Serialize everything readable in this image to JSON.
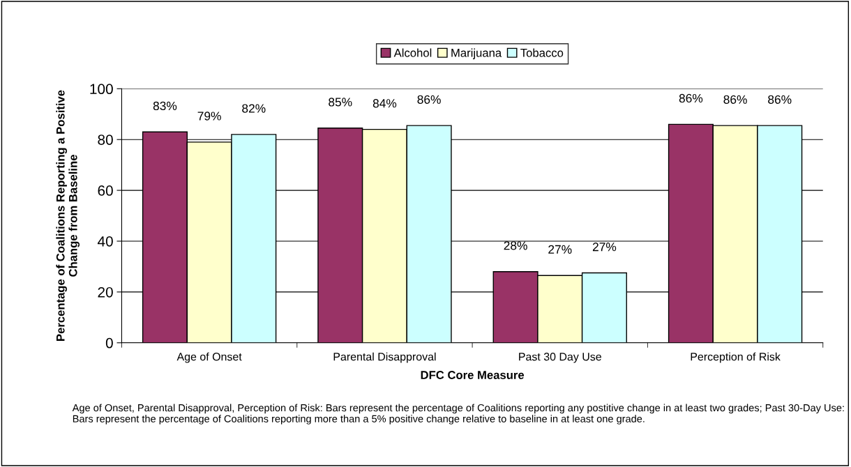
{
  "chart_data": {
    "type": "bar",
    "xlabel": "DFC Core Measure",
    "ylabel": "Percentage of Coalitions Reporting a Positive\nChange from Baseline",
    "categories": [
      "Age of Onset",
      "Parental Disapproval",
      "Past 30 Day Use",
      "Perception of Risk"
    ],
    "series": [
      {
        "name": "Alcohol",
        "color": "#993366",
        "values": [
          83,
          84.5,
          28,
          86
        ],
        "value_labels": [
          "83%",
          "85%",
          "28%",
          "86%"
        ]
      },
      {
        "name": "Marijuana",
        "color": "#ffffcc",
        "values": [
          79,
          84,
          26.5,
          85.5
        ],
        "value_labels": [
          "79%",
          "84%",
          "27%",
          "86%"
        ]
      },
      {
        "name": "Tobacco",
        "color": "#ccffff",
        "values": [
          82,
          85.5,
          27.5,
          85.5
        ],
        "value_labels": [
          "82%",
          "86%",
          "27%",
          "86%"
        ]
      }
    ],
    "ylim": [
      0,
      100
    ],
    "yticks": [
      0,
      20,
      40,
      60,
      80,
      100
    ],
    "grid": "y",
    "legend": "top",
    "annotations": [
      "Age of Onset, Parental Disapproval, Perception of Risk: Bars represent the percentage of Coalitions reporting any postitive change in at least two grades; Past 30-Day Use: Bars represent the percentage of Coalitions reporting more than a 5% positive change relative to baseline in at least one grade."
    ]
  }
}
